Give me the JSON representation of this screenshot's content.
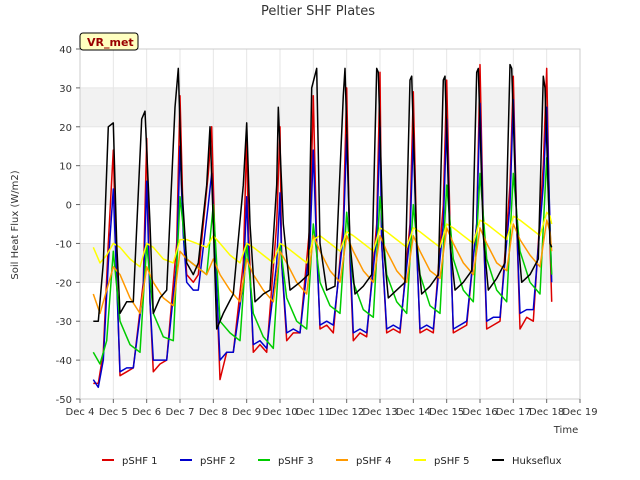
{
  "chart_data": {
    "type": "line",
    "title": "Peltier SHF Plates",
    "xlabel": "Time",
    "ylabel": "Soil Heat Flux (W/m2)",
    "badge": {
      "label": "VR_met",
      "background": "#ffffc0",
      "border": "#000000",
      "text_color": "#990000"
    },
    "xlim": [
      4,
      19
    ],
    "ylim": [
      -50,
      40
    ],
    "x_ticks": [
      4,
      5,
      6,
      7,
      8,
      9,
      10,
      11,
      12,
      13,
      14,
      15,
      16,
      17,
      18,
      19
    ],
    "x_tick_labels": [
      "Dec 4",
      "Dec 5",
      "Dec 6",
      "Dec 7",
      "Dec 8",
      "Dec 9",
      "Dec 10",
      "Dec 11",
      "Dec 12",
      "Dec 13",
      "Dec 14",
      "Dec 15",
      "Dec 16",
      "Dec 17",
      "Dec 18",
      "Dec 19"
    ],
    "y_ticks": [
      -50,
      -40,
      -30,
      -20,
      -10,
      0,
      10,
      20,
      30,
      40
    ],
    "y_tick_labels": [
      "-50",
      "-40",
      "-30",
      "-20",
      "-10",
      "0",
      "10",
      "20",
      "30",
      "40"
    ],
    "grid": true,
    "band_colors": [
      "#ffffff",
      "#f2f2f2"
    ],
    "legend_position": "bottom",
    "series": [
      {
        "name": "pSHF 1",
        "color": "#dd0000",
        "x": [
          4.4,
          4.55,
          4.7,
          4.85,
          5.0,
          5.1,
          5.2,
          5.4,
          5.6,
          5.9,
          6.0,
          6.1,
          6.2,
          6.4,
          6.6,
          6.9,
          7.0,
          7.1,
          7.2,
          7.4,
          7.55,
          7.85,
          7.95,
          8.05,
          8.2,
          8.4,
          8.6,
          8.9,
          9.0,
          9.05,
          9.2,
          9.4,
          9.6,
          9.9,
          10.0,
          10.05,
          10.2,
          10.4,
          10.6,
          10.9,
          11.0,
          11.1,
          11.2,
          11.4,
          11.6,
          11.9,
          12.0,
          12.1,
          12.2,
          12.4,
          12.6,
          12.9,
          13.0,
          13.05,
          13.2,
          13.4,
          13.6,
          13.9,
          14.0,
          14.1,
          14.2,
          14.4,
          14.6,
          14.9,
          15.0,
          15.1,
          15.2,
          15.4,
          15.6,
          15.9,
          16.0,
          16.1,
          16.2,
          16.4,
          16.6,
          16.9,
          17.0,
          17.1,
          17.2,
          17.4,
          17.6,
          17.9,
          18.0,
          18.1,
          18.15
        ],
        "y": [
          -46,
          -46,
          -38,
          -10,
          14,
          -18,
          -44,
          -43,
          -42,
          -20,
          17,
          -25,
          -43,
          -41,
          -40,
          -10,
          28,
          -5,
          -18,
          -20,
          -18,
          8,
          20,
          -10,
          -45,
          -38,
          -38,
          -15,
          17,
          -5,
          -38,
          -36,
          -38,
          -5,
          20,
          -15,
          -35,
          -33,
          -33,
          -5,
          28,
          -10,
          -32,
          -31,
          -33,
          -5,
          30,
          -15,
          -35,
          -33,
          -34,
          -5,
          34,
          -10,
          -33,
          -32,
          -33,
          -5,
          29,
          -10,
          -33,
          -32,
          -33,
          0,
          32,
          -5,
          -33,
          -32,
          -31,
          -5,
          36,
          -5,
          -32,
          -31,
          -30,
          5,
          33,
          -5,
          -32,
          -29,
          -30,
          10,
          35,
          -10,
          -25
        ]
      },
      {
        "name": "pSHF 2",
        "color": "#0000cc",
        "x": [
          4.4,
          4.55,
          4.7,
          4.85,
          5.0,
          5.1,
          5.2,
          5.4,
          5.6,
          5.9,
          6.0,
          6.1,
          6.2,
          6.4,
          6.6,
          6.9,
          7.0,
          7.1,
          7.2,
          7.4,
          7.55,
          7.85,
          7.95,
          8.05,
          8.2,
          8.4,
          8.6,
          8.9,
          9.0,
          9.05,
          9.2,
          9.4,
          9.6,
          9.9,
          10.0,
          10.05,
          10.2,
          10.4,
          10.6,
          10.9,
          11.0,
          11.1,
          11.2,
          11.4,
          11.6,
          11.9,
          12.0,
          12.1,
          12.2,
          12.4,
          12.6,
          12.9,
          13.0,
          13.05,
          13.2,
          13.4,
          13.6,
          13.9,
          14.0,
          14.1,
          14.2,
          14.4,
          14.6,
          14.9,
          15.0,
          15.1,
          15.2,
          15.4,
          15.6,
          15.9,
          16.0,
          16.1,
          16.2,
          16.4,
          16.6,
          16.9,
          17.0,
          17.1,
          17.2,
          17.4,
          17.6,
          17.9,
          18.0,
          18.1,
          18.15
        ],
        "y": [
          -45,
          -47,
          -40,
          -15,
          4,
          -20,
          -43,
          -42,
          -42,
          -22,
          6,
          -25,
          -40,
          -40,
          -40,
          -15,
          15,
          -8,
          -20,
          -22,
          -22,
          0,
          8,
          -12,
          -40,
          -38,
          -38,
          -20,
          2,
          -10,
          -36,
          -35,
          -37,
          -15,
          3,
          -15,
          -33,
          -32,
          -33,
          -10,
          14,
          -12,
          -31,
          -30,
          -31,
          -8,
          18,
          -12,
          -33,
          -32,
          -33,
          -8,
          20,
          -10,
          -32,
          -31,
          -32,
          -8,
          18,
          -12,
          -32,
          -31,
          -32,
          -5,
          22,
          -8,
          -32,
          -31,
          -30,
          -5,
          26,
          -5,
          -30,
          -29,
          -29,
          0,
          27,
          -5,
          -28,
          -27,
          -27,
          5,
          25,
          -5,
          -20
        ]
      },
      {
        "name": "pSHF 3",
        "color": "#00cc00",
        "x": [
          4.4,
          4.6,
          4.8,
          5.0,
          5.2,
          5.5,
          5.8,
          6.0,
          6.2,
          6.5,
          6.8,
          7.0,
          7.2,
          7.5,
          7.8,
          8.0,
          8.2,
          8.5,
          8.8,
          9.0,
          9.2,
          9.5,
          9.8,
          10.0,
          10.2,
          10.5,
          10.8,
          11.0,
          11.2,
          11.5,
          11.8,
          12.0,
          12.2,
          12.5,
          12.8,
          13.0,
          13.2,
          13.5,
          13.8,
          14.0,
          14.2,
          14.5,
          14.8,
          15.0,
          15.2,
          15.5,
          15.8,
          16.0,
          16.2,
          16.5,
          16.8,
          17.0,
          17.2,
          17.5,
          17.8,
          18.0,
          18.1,
          18.15
        ],
        "y": [
          -38,
          -41,
          -35,
          -12,
          -30,
          -36,
          -38,
          -10,
          -28,
          -34,
          -35,
          2,
          -14,
          -16,
          -18,
          0,
          -30,
          -33,
          -35,
          -10,
          -28,
          -34,
          -37,
          -10,
          -24,
          -30,
          -32,
          -5,
          -20,
          -26,
          -28,
          -2,
          -20,
          -27,
          -29,
          2,
          -18,
          -25,
          -28,
          0,
          -18,
          -26,
          -28,
          5,
          -14,
          -22,
          -25,
          8,
          -14,
          -22,
          -25,
          8,
          -12,
          -20,
          -23,
          12,
          -8,
          -18
        ]
      },
      {
        "name": "pSHF 4",
        "color": "#ff9900",
        "x": [
          4.4,
          4.6,
          4.8,
          5.0,
          5.2,
          5.5,
          5.8,
          6.0,
          6.2,
          6.5,
          6.8,
          7.0,
          7.2,
          7.5,
          7.8,
          8.0,
          8.2,
          8.5,
          8.8,
          9.0,
          9.2,
          9.5,
          9.8,
          10.0,
          10.2,
          10.5,
          10.8,
          11.0,
          11.2,
          11.5,
          11.8,
          12.0,
          12.2,
          12.5,
          12.8,
          13.0,
          13.2,
          13.5,
          13.8,
          14.0,
          14.2,
          14.5,
          14.8,
          15.0,
          15.2,
          15.5,
          15.8,
          16.0,
          16.2,
          16.5,
          16.8,
          17.0,
          17.2,
          17.5,
          17.8,
          18.0,
          18.1,
          18.15
        ],
        "y": [
          -23,
          -28,
          -22,
          -16,
          -18,
          -24,
          -28,
          -16,
          -20,
          -24,
          -26,
          -12,
          -14,
          -16,
          -18,
          -14,
          -18,
          -22,
          -25,
          -14,
          -18,
          -22,
          -25,
          -12,
          -15,
          -20,
          -23,
          -8,
          -12,
          -17,
          -20,
          -8,
          -12,
          -17,
          -20,
          -8,
          -12,
          -17,
          -20,
          -8,
          -12,
          -17,
          -19,
          -6,
          -10,
          -15,
          -18,
          -6,
          -10,
          -15,
          -17,
          -5,
          -9,
          -13,
          -16,
          -4,
          -7,
          -12
        ]
      },
      {
        "name": "pSHF 5",
        "color": "#ffff00",
        "x": [
          4.4,
          4.6,
          4.8,
          5.0,
          5.2,
          5.5,
          5.8,
          6.0,
          6.2,
          6.5,
          6.8,
          7.0,
          7.2,
          7.5,
          7.8,
          8.0,
          8.2,
          8.5,
          8.8,
          9.0,
          9.2,
          9.5,
          9.8,
          10.0,
          10.2,
          10.5,
          10.8,
          11.0,
          11.2,
          11.5,
          11.8,
          12.0,
          12.2,
          12.5,
          12.8,
          13.0,
          13.2,
          13.5,
          13.8,
          14.0,
          14.2,
          14.5,
          14.8,
          15.0,
          15.2,
          15.5,
          15.8,
          16.0,
          16.2,
          16.5,
          16.8,
          17.0,
          17.2,
          17.5,
          17.8,
          18.0,
          18.1,
          18.15
        ],
        "y": [
          -11,
          -15,
          -13,
          -10,
          -11,
          -14,
          -16,
          -10,
          -11,
          -14,
          -15,
          -9,
          -9,
          -10,
          -11,
          -8,
          -10,
          -13,
          -15,
          -10,
          -11,
          -13,
          -15,
          -10,
          -11,
          -13,
          -15,
          -9,
          -8,
          -10,
          -12,
          -7,
          -8,
          -10,
          -12,
          -6,
          -7,
          -9,
          -11,
          -6,
          -7,
          -9,
          -11,
          -5,
          -6,
          -8,
          -10,
          -4,
          -5,
          -7,
          -9,
          -3,
          -4,
          -6,
          -8,
          -2,
          -3,
          -5
        ]
      },
      {
        "name": "Hukseflux",
        "color": "#000000",
        "x": [
          4.4,
          4.55,
          4.7,
          4.85,
          5.0,
          5.1,
          5.2,
          5.4,
          5.6,
          5.85,
          5.95,
          6.1,
          6.2,
          6.4,
          6.6,
          6.85,
          6.95,
          7.05,
          7.2,
          7.4,
          7.55,
          7.8,
          7.9,
          8.0,
          8.1,
          8.3,
          8.6,
          8.9,
          9.0,
          9.1,
          9.25,
          9.5,
          9.7,
          9.9,
          9.95,
          10.1,
          10.3,
          10.6,
          10.85,
          10.95,
          11.1,
          11.2,
          11.4,
          11.65,
          11.9,
          11.95,
          12.1,
          12.25,
          12.5,
          12.75,
          12.9,
          12.95,
          13.1,
          13.25,
          13.5,
          13.75,
          13.9,
          13.95,
          14.1,
          14.25,
          14.5,
          14.75,
          14.9,
          14.95,
          15.1,
          15.25,
          15.5,
          15.75,
          15.9,
          15.95,
          16.1,
          16.25,
          16.5,
          16.75,
          16.9,
          16.95,
          17.1,
          17.25,
          17.5,
          17.75,
          17.9,
          17.95,
          18.1,
          18.15
        ],
        "y": [
          -30,
          -30,
          -15,
          20,
          21,
          -10,
          -28,
          -25,
          -25,
          22,
          24,
          -5,
          -28,
          -24,
          -22,
          25,
          35,
          5,
          -15,
          -18,
          -15,
          5,
          20,
          -5,
          -32,
          -28,
          -23,
          5,
          21,
          -5,
          -25,
          -23,
          -22,
          5,
          25,
          -5,
          -22,
          -20,
          -18,
          30,
          35,
          -10,
          -22,
          -21,
          28,
          35,
          -10,
          -23,
          -21,
          -18,
          35,
          34,
          -10,
          -24,
          -22,
          -20,
          32,
          33,
          -10,
          -23,
          -21,
          -18,
          32,
          33,
          -10,
          -22,
          -20,
          -17,
          34,
          35,
          -8,
          -22,
          -19,
          -15,
          36,
          35,
          -5,
          -20,
          -18,
          -14,
          33,
          30,
          -10,
          -11
        ]
      }
    ]
  }
}
